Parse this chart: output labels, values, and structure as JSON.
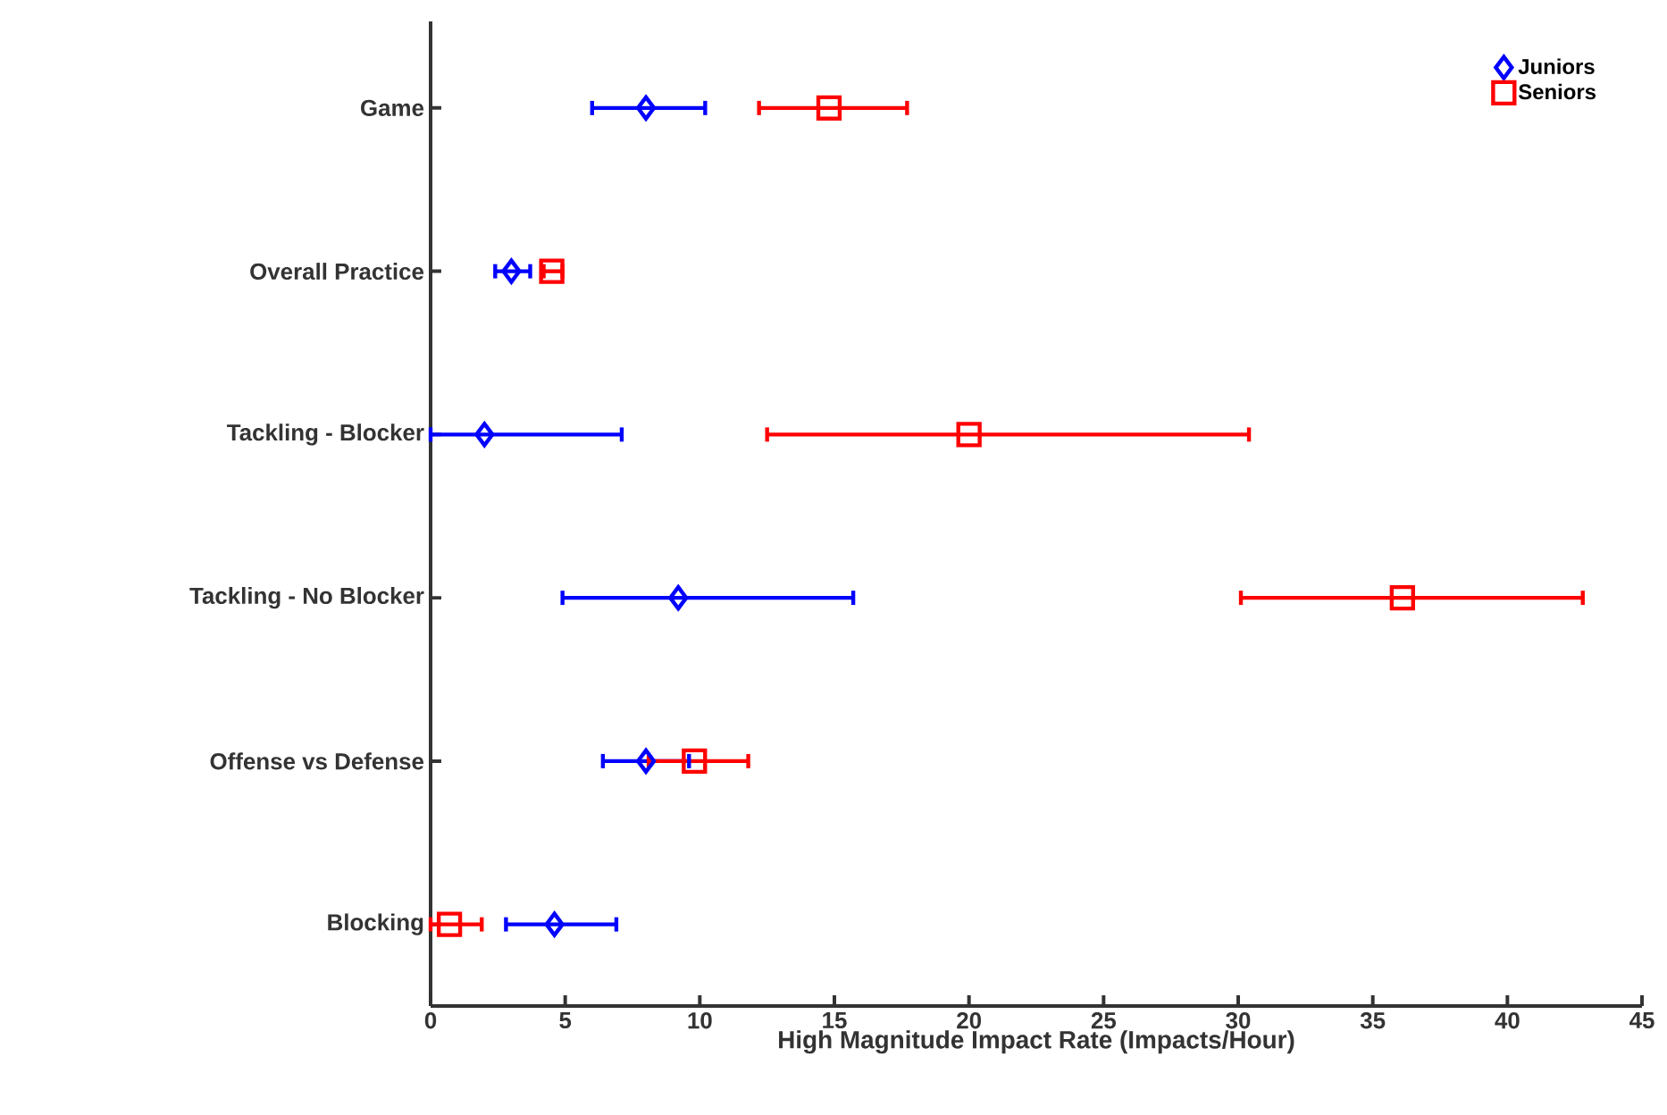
{
  "chart_data": {
    "type": "scatter",
    "orientation": "horizontal",
    "xlabel": "High Magnitude Impact Rate (Impacts/Hour)",
    "categories": [
      "Game",
      "Overall Practice",
      "Tackling - Blocker",
      "Tackling - No Blocker",
      "Offense vs Defense",
      "Blocking"
    ],
    "series": [
      {
        "name": "Juniors",
        "color": "#0000ff",
        "marker": "diamond",
        "values": [
          8.0,
          3.0,
          2.0,
          9.2,
          8.0,
          4.6
        ],
        "errors": [
          [
            6.0,
            10.2
          ],
          [
            2.4,
            3.7
          ],
          [
            0.0,
            7.1
          ],
          [
            4.9,
            15.7
          ],
          [
            6.4,
            9.6
          ],
          [
            2.8,
            6.9
          ]
        ]
      },
      {
        "name": "Seniors",
        "color": "#ff0000",
        "marker": "square",
        "values": [
          14.8,
          4.5,
          20.0,
          36.1,
          9.8,
          0.7
        ],
        "errors": [
          [
            12.2,
            17.7
          ],
          [
            4.2,
            4.9
          ],
          [
            12.5,
            30.4
          ],
          [
            30.1,
            42.8
          ],
          [
            8.1,
            11.8
          ],
          [
            0.0,
            1.9
          ]
        ]
      }
    ],
    "xlim": [
      0,
      45
    ],
    "xticks": [
      0,
      5,
      10,
      15,
      20,
      25,
      30,
      35,
      40,
      45
    ],
    "grid": false,
    "legend": "top right"
  }
}
